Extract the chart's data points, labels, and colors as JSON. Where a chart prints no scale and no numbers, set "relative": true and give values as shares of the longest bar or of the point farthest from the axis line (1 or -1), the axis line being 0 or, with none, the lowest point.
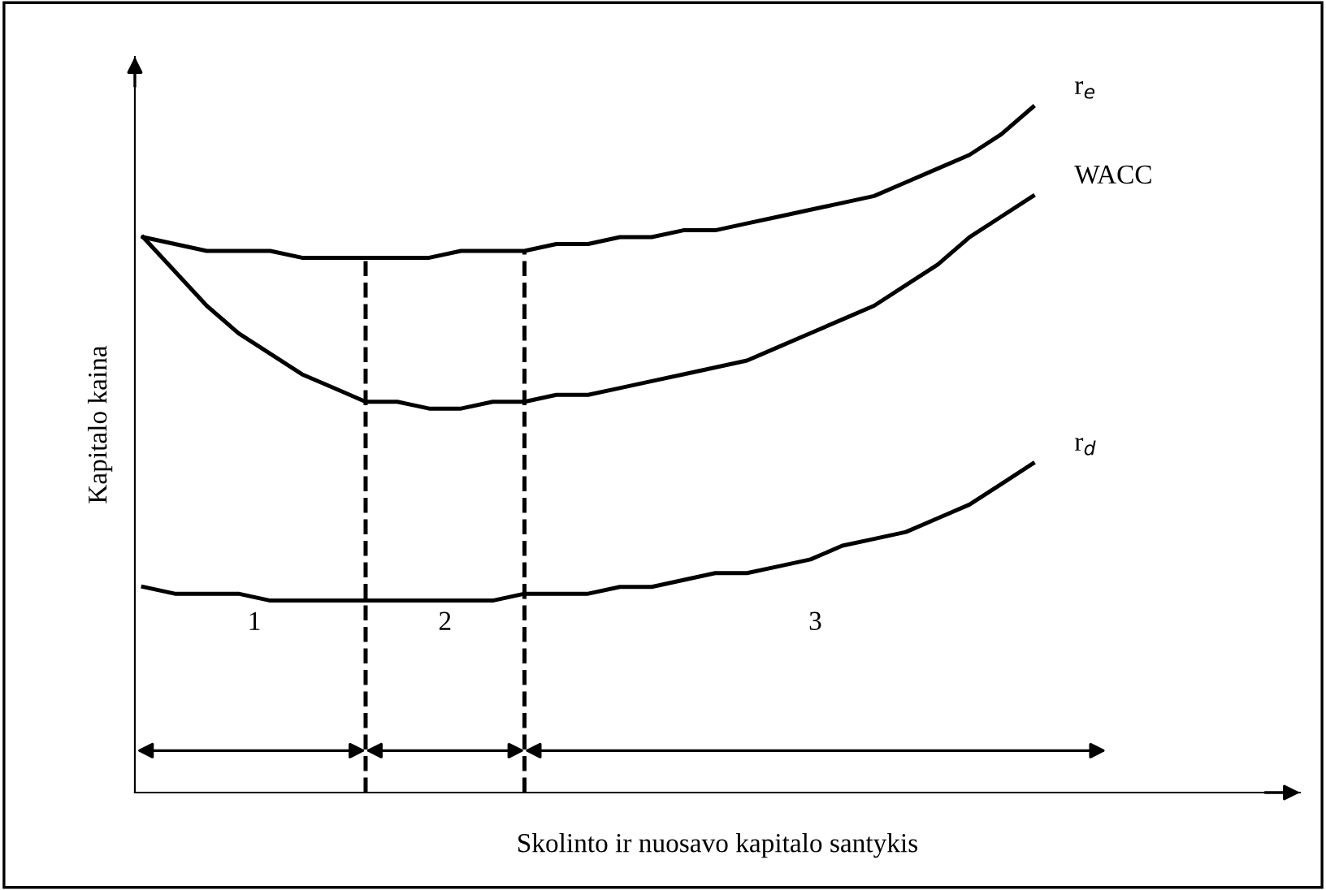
{
  "chart_data": {
    "type": "line",
    "relative": true,
    "xlabel": "Skolinto ir nuosavo kapitalo santykis",
    "ylabel": "Kapitalo kaina",
    "categories": [
      null,
      null,
      null,
      null,
      null,
      null,
      null,
      null,
      null,
      null,
      null,
      null,
      null,
      null,
      null,
      null,
      null,
      null,
      null,
      null,
      null,
      null,
      null,
      null,
      null,
      null,
      null,
      null,
      null
    ],
    "series": [
      {
        "name": "r$_{e}$",
        "color": "#000000",
        "values": [
          0.81,
          0.8,
          0.79,
          0.79,
          0.79,
          0.78,
          0.78,
          0.78,
          0.78,
          0.78,
          0.79,
          0.79,
          0.79,
          0.8,
          0.8,
          0.81,
          0.81,
          0.82,
          0.82,
          0.83,
          0.84,
          0.85,
          0.86,
          0.87,
          0.89,
          0.91,
          0.93,
          0.96,
          1.0
        ]
      },
      {
        "name": "WACC",
        "color": "#000000",
        "values": [
          0.81,
          0.76,
          0.71,
          0.67,
          0.64,
          0.61,
          0.59,
          0.57,
          0.57,
          0.56,
          0.56,
          0.57,
          0.57,
          0.58,
          0.58,
          0.59,
          0.6,
          0.61,
          0.62,
          0.63,
          0.65,
          0.67,
          0.69,
          0.71,
          0.74,
          0.77,
          0.81,
          0.84,
          0.87
        ]
      },
      {
        "name": "r$_{d}$",
        "color": "#000000",
        "values": [
          0.3,
          0.29,
          0.29,
          0.29,
          0.28,
          0.28,
          0.28,
          0.28,
          0.28,
          0.28,
          0.28,
          0.28,
          0.29,
          0.29,
          0.29,
          0.3,
          0.3,
          0.31,
          0.32,
          0.32,
          0.33,
          0.34,
          0.36,
          0.37,
          0.38,
          0.4,
          0.42,
          0.45,
          0.48
        ]
      }
    ],
    "annotations": [
      "1",
      "2",
      "3"
    ],
    "tick_labels": false,
    "legend": false,
    "marker": "none",
    "line_style": "solid"
  }
}
